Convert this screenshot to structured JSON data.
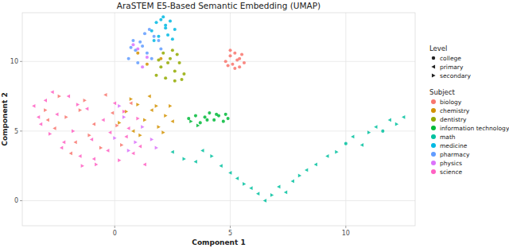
{
  "chart_data": {
    "type": "scatter",
    "title": "AraSTEM E5-Based Semantic Embedding (UMAP)",
    "x_label": "Component 1",
    "y_label": "Component 2",
    "xlim": [
      -4,
      13
    ],
    "ylim": [
      -1.8,
      13.5
    ],
    "xticks": [
      0,
      5,
      10
    ],
    "yticks": [
      0,
      5,
      10
    ],
    "grid": true,
    "legend": "right",
    "level_legend_title": "Level",
    "subject_legend_title": "Subject",
    "levels": [
      {
        "name": "college",
        "marker": "circle"
      },
      {
        "name": "primary",
        "marker": "triangle-left"
      },
      {
        "name": "secondary",
        "marker": "triangle-right"
      }
    ],
    "series": [
      {
        "name": "biology",
        "color": "#F8766D",
        "x": [
          -3.0,
          -2.6,
          -2.1,
          -1.7,
          -1.3,
          -0.9,
          -0.6,
          -0.1,
          0.3,
          0.7,
          -2.4,
          -1.9,
          -1.1,
          -0.4,
          0.1,
          -2.9,
          -1.5,
          4.8,
          5.0,
          5.2,
          5.4,
          5.6,
          4.9,
          5.1,
          5.3,
          5.5,
          5.0,
          5.2,
          5.4
        ],
        "values": [
          6.5,
          5.2,
          6.0,
          4.2,
          7.2,
          5.5,
          3.8,
          6.3,
          4.0,
          7.0,
          7.5,
          3.4,
          4.7,
          7.6,
          5.4,
          5.8,
          6.5,
          10.0,
          10.4,
          10.6,
          10.2,
          9.9,
          9.7,
          9.8,
          10.1,
          10.5,
          10.8,
          9.5,
          9.6
        ],
        "level": [
          "secondary",
          "primary",
          "secondary",
          "primary",
          "secondary",
          "primary",
          "secondary",
          "primary",
          "secondary",
          "primary",
          "secondary",
          "primary",
          "secondary",
          "primary",
          "secondary",
          "primary",
          "secondary",
          "college",
          "college",
          "college",
          "college",
          "college",
          "college",
          "college",
          "college",
          "college",
          "college",
          "college",
          "college"
        ]
      },
      {
        "name": "chemistry",
        "color": "#D39200",
        "x": [
          0.2,
          0.5,
          0.8,
          1.0,
          1.3,
          1.6,
          1.9,
          2.2,
          2.5,
          0.7,
          1.1,
          1.5,
          1.8,
          2.1,
          2.4,
          1.4,
          2.0,
          1.0
        ],
        "values": [
          5.6,
          6.4,
          5.0,
          6.9,
          5.8,
          6.5,
          5.3,
          6.1,
          5.7,
          7.3,
          4.7,
          7.5,
          6.8,
          4.9,
          6.8,
          9.8,
          10.2,
          10.6
        ],
        "level": [
          "secondary",
          "secondary",
          "primary",
          "secondary",
          "secondary",
          "primary",
          "secondary",
          "secondary",
          "primary",
          "secondary",
          "secondary",
          "primary",
          "secondary",
          "secondary",
          "secondary",
          "college",
          "college",
          "college"
        ]
      },
      {
        "name": "dentistry",
        "color": "#93AA00",
        "x": [
          1.8,
          2.0,
          2.2,
          2.4,
          2.6,
          2.8,
          3.0,
          2.1,
          2.5,
          2.9,
          2.3,
          2.7,
          1.9,
          2.6
        ],
        "values": [
          9.0,
          9.6,
          8.8,
          10.2,
          9.3,
          9.9,
          9.1,
          10.6,
          10.8,
          8.7,
          9.9,
          10.5,
          10.1,
          8.6
        ],
        "level": [
          "college",
          "college",
          "college",
          "college",
          "college",
          "college",
          "college",
          "college",
          "college",
          "college",
          "college",
          "college",
          "college",
          "college"
        ]
      },
      {
        "name": "information technology",
        "color": "#00BA38",
        "x": [
          3.2,
          3.5,
          3.7,
          3.9,
          4.1,
          4.3,
          4.5,
          4.7,
          4.9,
          3.6,
          4.0,
          4.4,
          4.8,
          3.3
        ],
        "values": [
          5.9,
          6.1,
          5.6,
          6.0,
          6.3,
          5.8,
          6.1,
          5.7,
          5.9,
          5.4,
          5.8,
          6.2,
          6.2,
          5.7
        ],
        "level": [
          "college",
          "college",
          "college",
          "college",
          "college",
          "college",
          "college",
          "college",
          "college",
          "secondary",
          "college",
          "college",
          "college",
          "secondary"
        ]
      },
      {
        "name": "math",
        "color": "#00C19F",
        "x": [
          2.5,
          3.0,
          3.5,
          3.8,
          4.2,
          4.6,
          5.0,
          5.3,
          5.6,
          5.9,
          6.2,
          6.5,
          6.8,
          7.1,
          7.4,
          7.7,
          8.0,
          8.3,
          8.7,
          9.2,
          9.6,
          10.0,
          10.3,
          10.7,
          11.0,
          11.3,
          11.6,
          11.9,
          12.2,
          12.5
        ],
        "values": [
          3.5,
          3.0,
          2.8,
          3.6,
          3.2,
          2.5,
          2.0,
          1.6,
          1.2,
          0.9,
          0.5,
          0.0,
          0.4,
          1.0,
          0.6,
          1.4,
          1.8,
          2.2,
          2.6,
          3.2,
          3.5,
          4.1,
          4.6,
          4.0,
          4.9,
          5.3,
          5.0,
          5.8,
          5.5,
          6.0
        ],
        "level": [
          "primary",
          "secondary",
          "primary",
          "primary",
          "secondary",
          "primary",
          "primary",
          "primary",
          "secondary",
          "primary",
          "primary",
          "primary",
          "secondary",
          "primary",
          "primary",
          "primary",
          "secondary",
          "primary",
          "primary",
          "primary",
          "secondary",
          "college",
          "primary",
          "primary",
          "secondary",
          "primary",
          "college",
          "primary",
          "secondary",
          "primary"
        ]
      },
      {
        "name": "medicine",
        "color": "#00B9E3",
        "x": [
          1.6,
          1.8,
          2.0,
          2.2,
          2.4,
          2.6,
          1.9,
          2.3,
          2.1,
          2.5,
          1.7,
          2.2
        ],
        "values": [
          12.2,
          12.8,
          13.0,
          12.4,
          12.9,
          12.3,
          11.8,
          11.9,
          13.2,
          11.6,
          11.5,
          12.6
        ],
        "level": [
          "college",
          "college",
          "college",
          "college",
          "college",
          "college",
          "college",
          "college",
          "college",
          "college",
          "college",
          "college"
        ]
      },
      {
        "name": "pharmacy",
        "color": "#619CFF",
        "x": [
          0.6,
          0.9,
          1.1,
          1.4,
          1.7,
          2.0,
          0.8,
          1.3,
          1.6,
          1.0,
          1.9,
          1.2,
          0.7,
          1.5
        ],
        "values": [
          10.2,
          10.8,
          11.4,
          10.6,
          11.8,
          10.9,
          11.5,
          12.0,
          10.2,
          9.9,
          11.5,
          11.1,
          11.0,
          12.3
        ],
        "level": [
          "college",
          "college",
          "college",
          "college",
          "college",
          "college",
          "college",
          "college",
          "college",
          "college",
          "college",
          "college",
          "college",
          "college"
        ]
      },
      {
        "name": "physics",
        "color": "#DB72FB",
        "x": [
          0.0,
          0.4,
          0.9,
          1.2,
          1.6,
          0.6,
          1.8,
          0.2,
          1.0,
          1.4,
          0.8,
          1.2
        ],
        "values": [
          4.5,
          6.0,
          4.2,
          5.3,
          4.4,
          3.6,
          3.8,
          6.8,
          10.9,
          10.3,
          11.2,
          9.6
        ],
        "level": [
          "secondary",
          "secondary",
          "secondary",
          "secondary",
          "secondary",
          "secondary",
          "secondary",
          "secondary",
          "college",
          "college",
          "college",
          "college"
        ]
      },
      {
        "name": "science",
        "color": "#FF61C3",
        "x": [
          -3.5,
          -3.2,
          -3.0,
          -2.8,
          -2.5,
          -2.3,
          -2.0,
          -1.8,
          -1.5,
          -1.2,
          -1.0,
          -0.8,
          -0.5,
          -0.3,
          0.0,
          0.2,
          0.5,
          0.8,
          1.0,
          1.3,
          -2.7,
          -2.2,
          -1.6,
          -0.9,
          -0.2,
          0.4,
          1.1,
          -3.3,
          -1.4,
          0.6
        ],
        "values": [
          6.8,
          5.5,
          7.2,
          4.8,
          6.2,
          3.8,
          7.5,
          5.0,
          3.2,
          6.6,
          4.4,
          2.6,
          5.8,
          3.6,
          7.0,
          2.9,
          4.6,
          3.4,
          5.9,
          2.6,
          7.8,
          4.2,
          6.9,
          3.0,
          4.9,
          6.4,
          3.9,
          6.0,
          2.5,
          5.2
        ],
        "level": [
          "primary",
          "primary",
          "primary",
          "secondary",
          "primary",
          "primary",
          "primary",
          "secondary",
          "primary",
          "primary",
          "primary",
          "secondary",
          "primary",
          "primary",
          "primary",
          "secondary",
          "primary",
          "primary",
          "secondary",
          "primary",
          "primary",
          "primary",
          "secondary",
          "primary",
          "primary",
          "secondary",
          "primary",
          "primary",
          "secondary",
          "primary"
        ]
      }
    ]
  }
}
